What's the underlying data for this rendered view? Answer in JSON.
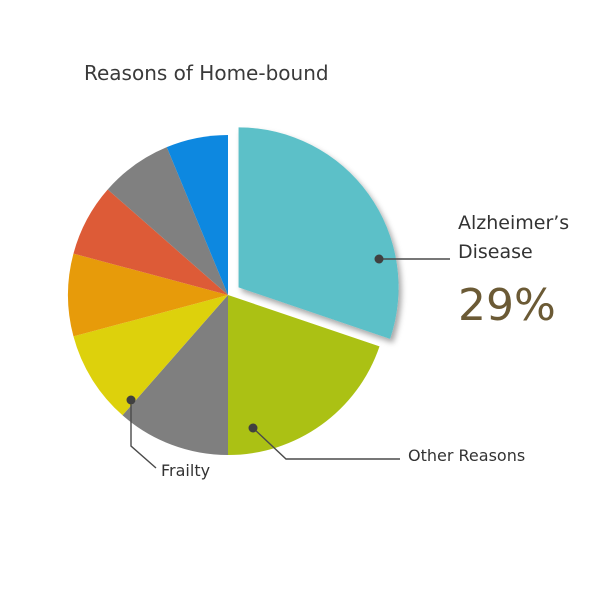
{
  "chart_data": {
    "type": "pie",
    "title": "Reasons of Home-bound",
    "slices": [
      {
        "label": "Alzheimer’s Disease",
        "value": 29,
        "color": "#5bc0c8",
        "exploded": true
      },
      {
        "label": "Other Reasons",
        "value": 19,
        "color": "#abc114"
      },
      {
        "label": "Frailty",
        "value": 11,
        "color": "#7f7f7f"
      },
      {
        "label": "",
        "value": 9,
        "color": "#ddd10c"
      },
      {
        "label": "",
        "value": 8,
        "color": "#e79b0a"
      },
      {
        "label": "",
        "value": 7,
        "color": "#dd5b37"
      },
      {
        "label": "",
        "value": 7,
        "color": "#808080"
      },
      {
        "label": "",
        "value": 6,
        "color": "#0d88e0"
      }
    ],
    "annotations": {
      "alzheimers_line1": "Alzheimer’s",
      "alzheimers_line2": "Disease",
      "alzheimers_percent": "29%",
      "other_reasons": "Other Reasons",
      "frailty": "Frailty"
    },
    "percent_color": "#6b5a35"
  }
}
